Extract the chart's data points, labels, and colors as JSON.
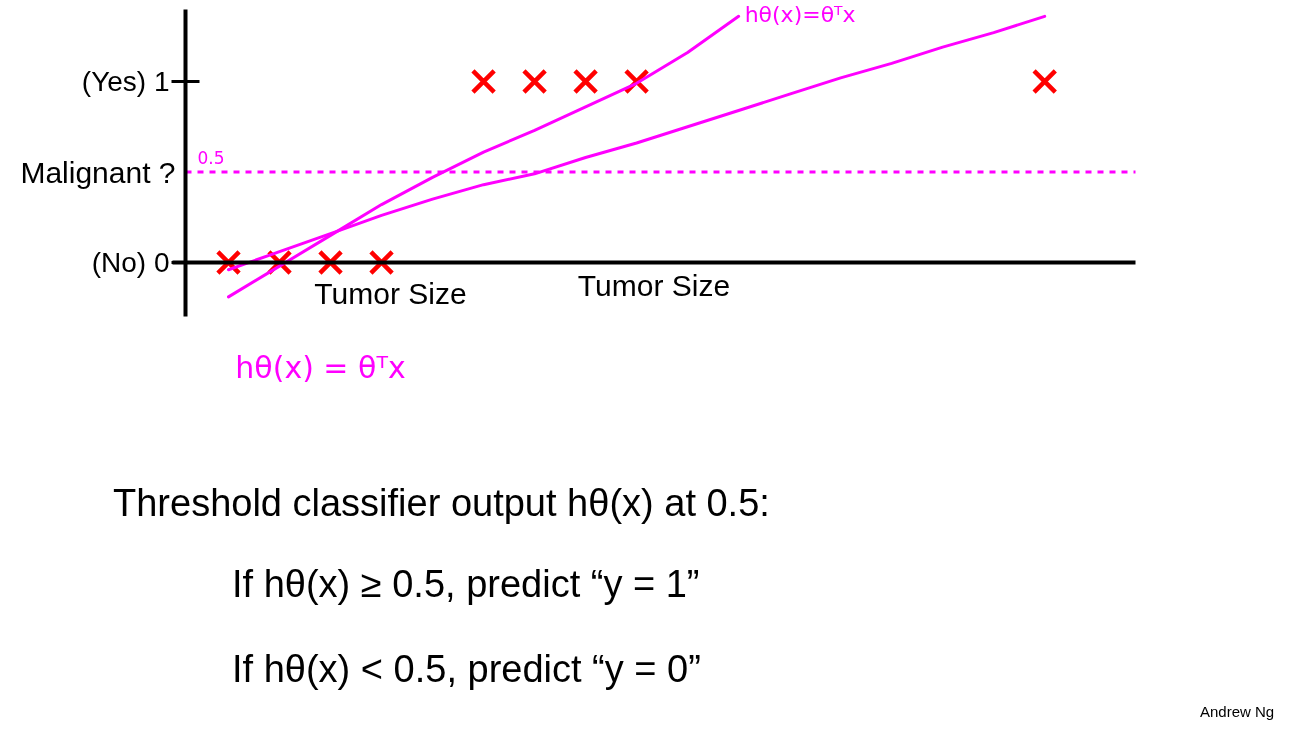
{
  "chart_data": {
    "type": "scatter",
    "xlabel": "Tumor Size",
    "ylabel": "Malignant ?",
    "categories": [
      null,
      null,
      null,
      null,
      null,
      null,
      null,
      null,
      null,
      null,
      null,
      null,
      null,
      null,
      null,
      null,
      null
    ],
    "ylim": [
      -0.3,
      1.4
    ],
    "yticks": [
      {
        "value": 0,
        "label": "(No) 0"
      },
      {
        "value": 1,
        "label": "(Yes) 1"
      }
    ],
    "tick_labels": "y",
    "series": [
      {
        "color": "#ff0000",
        "marker": "cross",
        "values": [
          0,
          0,
          0,
          0,
          null,
          1,
          1,
          1,
          1,
          null,
          null,
          null,
          null,
          null,
          null,
          null,
          1
        ]
      },
      {
        "type": "line",
        "name": "hθ(x)=θᵀx",
        "color": "#ff00ff",
        "values": [
          -0.19,
          -0.02,
          0.15,
          0.32,
          0.47,
          0.61,
          0.73,
          0.86,
          0.99,
          1.16,
          1.36,
          null,
          null,
          null,
          null,
          null,
          null
        ]
      },
      {
        "type": "line",
        "color": "#ff00ff",
        "values": [
          -0.04,
          0.06,
          0.16,
          0.26,
          0.35,
          0.43,
          0.49,
          0.58,
          0.66,
          0.75,
          0.84,
          0.93,
          1.02,
          1.1,
          1.19,
          1.27,
          1.36
        ]
      }
    ],
    "ref_lines": [
      {
        "axis": "y",
        "value": 0.5,
        "label": "0.5",
        "color": "#ff00ff",
        "line_style": "dashed"
      }
    ],
    "annotations": [
      "Tumor Size",
      "hθ(x) = θᵀx",
      "Threshold classifier output hθ(x) at 0.5:",
      "If hθ(x) ≥ 0.5, predict “y = 1”",
      "If hθ(x) < 0.5, predict “y = 0”",
      "Andrew Ng"
    ]
  }
}
